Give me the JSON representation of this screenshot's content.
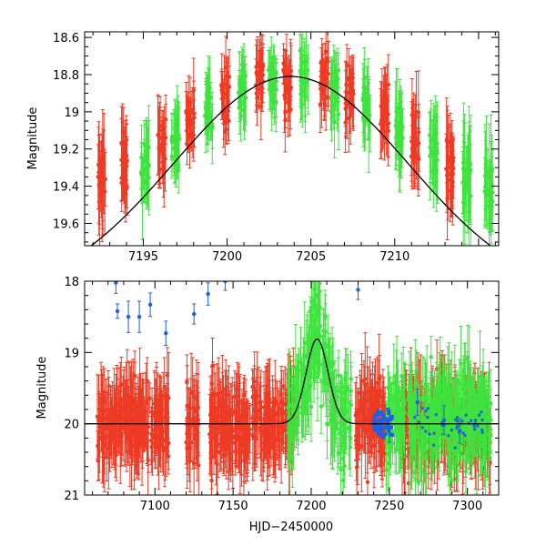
{
  "colors": {
    "red": "#ee3a24",
    "green": "#3fe33f",
    "blue": "#1f5fe0",
    "model": "#000000"
  },
  "chart_data": [
    {
      "type": "scatter",
      "title": "",
      "xlabel": "",
      "ylabel": "Magnitude",
      "xlim": [
        7191.5,
        7216.2
      ],
      "ylim": [
        19.72,
        18.57
      ],
      "inverted_y": true,
      "xticks": [
        7195,
        7200,
        7205,
        7210
      ],
      "yticks": [
        18.6,
        18.8,
        19,
        19.2,
        19.4,
        19.6
      ],
      "xtick_labels": [
        "7195",
        "7200",
        "7205",
        "7210"
      ],
      "ytick_labels": [
        "18.6",
        "18.8",
        "19",
        "19.2",
        "19.4",
        "19.6"
      ],
      "grid": false,
      "legend": "none",
      "model_curve": {
        "type": "gaussian-like",
        "peak_x": 7203.8,
        "peak_mag": 18.81,
        "baseline_mag": 20.0,
        "width_days": 7.0
      },
      "series": [
        {
          "color": "red",
          "nights": [
            {
              "x": 7192.5,
              "y": 19.36,
              "err": 0.2
            },
            {
              "x": 7193.9,
              "y": 19.28,
              "err": 0.15
            },
            {
              "x": 7196.1,
              "y": 19.2,
              "err": 0.15
            },
            {
              "x": 7197.8,
              "y": 19.04,
              "err": 0.12
            },
            {
              "x": 7199.9,
              "y": 18.93,
              "err": 0.12
            },
            {
              "x": 7201.9,
              "y": 18.82,
              "err": 0.12
            },
            {
              "x": 7203.6,
              "y": 18.86,
              "err": 0.14
            },
            {
              "x": 7205.8,
              "y": 18.82,
              "err": 0.14
            },
            {
              "x": 7207.3,
              "y": 18.92,
              "err": 0.14
            },
            {
              "x": 7209.4,
              "y": 19.0,
              "err": 0.14
            },
            {
              "x": 7211.2,
              "y": 19.15,
              "err": 0.16
            },
            {
              "x": 7213.3,
              "y": 19.28,
              "err": 0.18
            }
          ]
        },
        {
          "color": "green",
          "nights": [
            {
              "x": 7195.1,
              "y": 19.3,
              "err": 0.16
            },
            {
              "x": 7196.9,
              "y": 19.16,
              "err": 0.14
            },
            {
              "x": 7198.9,
              "y": 18.98,
              "err": 0.14
            },
            {
              "x": 7200.9,
              "y": 18.88,
              "err": 0.12
            },
            {
              "x": 7202.7,
              "y": 18.84,
              "err": 0.12
            },
            {
              "x": 7204.6,
              "y": 18.82,
              "err": 0.14
            },
            {
              "x": 7206.4,
              "y": 18.88,
              "err": 0.14
            },
            {
              "x": 7208.3,
              "y": 18.96,
              "err": 0.14
            },
            {
              "x": 7210.3,
              "y": 19.1,
              "err": 0.16
            },
            {
              "x": 7212.3,
              "y": 19.18,
              "err": 0.18
            },
            {
              "x": 7214.3,
              "y": 19.35,
              "err": 0.2
            },
            {
              "x": 7215.6,
              "y": 19.4,
              "err": 0.2
            }
          ]
        }
      ]
    },
    {
      "type": "scatter",
      "title": "",
      "xlabel": "HJD−2450000",
      "ylabel": "Magnitude",
      "xlim": [
        7055,
        7320
      ],
      "ylim": [
        21.0,
        18.0
      ],
      "inverted_y": true,
      "xticks": [
        7100,
        7150,
        7200,
        7250,
        7300
      ],
      "yticks": [
        18,
        19,
        20,
        21
      ],
      "xtick_labels": [
        "7100",
        "7150",
        "7200",
        "7250",
        "7300"
      ],
      "ytick_labels": [
        "18",
        "19",
        "20",
        "21"
      ],
      "grid": false,
      "legend": "none",
      "model_curve": {
        "type": "gaussian-like",
        "peak_x": 7203.8,
        "peak_mag": 18.81,
        "baseline_mag": 20.0,
        "width_days": 7.0
      },
      "series": [
        {
          "color": "red",
          "ranges": [
            [
              7063,
              7110
            ],
            [
              7120,
              7128
            ],
            [
              7135,
              7190
            ],
            [
              7228,
              7248
            ],
            [
              7258,
              7315
            ]
          ],
          "baseline_mag": 20.0,
          "scatter": 0.35
        },
        {
          "color": "green",
          "ranges": [
            [
              7185,
              7226
            ],
            [
              7248,
              7260
            ],
            [
              7262,
              7315
            ]
          ],
          "baseline_mag": 19.9,
          "scatter": 0.45
        },
        {
          "color": "blue",
          "points": [
            {
              "x": 7076,
              "y": 18.42
            },
            {
              "x": 7083,
              "y": 18.5
            },
            {
              "x": 7090,
              "y": 18.5
            },
            {
              "x": 7097,
              "y": 18.33
            },
            {
              "x": 7107,
              "y": 18.73
            },
            {
              "x": 7125,
              "y": 18.46
            },
            {
              "x": 7134,
              "y": 18.18
            },
            {
              "x": 7075,
              "y": 18.02
            },
            {
              "x": 7145,
              "y": 18.0
            },
            {
              "x": 7230,
              "y": 18.12
            },
            {
              "x": 7268,
              "y": 19.7
            },
            {
              "x": 7245,
              "y": 20.0
            },
            {
              "x": 7250,
              "y": 20.05
            },
            {
              "x": 7285,
              "y": 19.95
            },
            {
              "x": 7295,
              "y": 20.1
            }
          ]
        }
      ]
    }
  ]
}
